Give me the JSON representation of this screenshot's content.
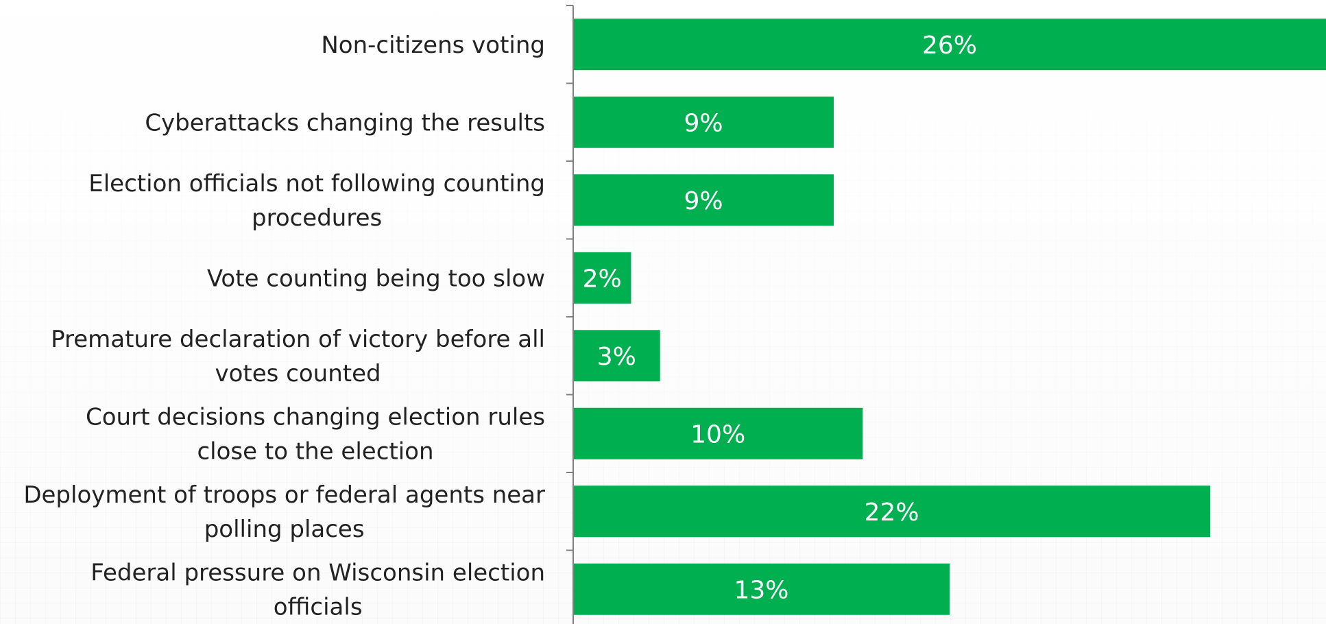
{
  "chart_data": {
    "type": "bar",
    "orientation": "horizontal",
    "categories": [
      "Non-citizens voting",
      "Cyberattacks changing the results",
      "Election officials not following counting procedures",
      "Vote counting being too slow",
      "Premature declaration of victory before all votes counted",
      "Court decisions changing election rules close to the election",
      "Deployment of troops or federal agents near polling places",
      "Federal pressure on Wisconsin election officials"
    ],
    "values": [
      26,
      9,
      9,
      2,
      3,
      10,
      22,
      13
    ],
    "data_labels": [
      "26%",
      "9%",
      "9%",
      "2%",
      "3%",
      "10%",
      "22%",
      "13%"
    ],
    "xlim": [
      0,
      26
    ],
    "colors": {
      "bar": "#00b050",
      "axis": "#808080"
    }
  }
}
